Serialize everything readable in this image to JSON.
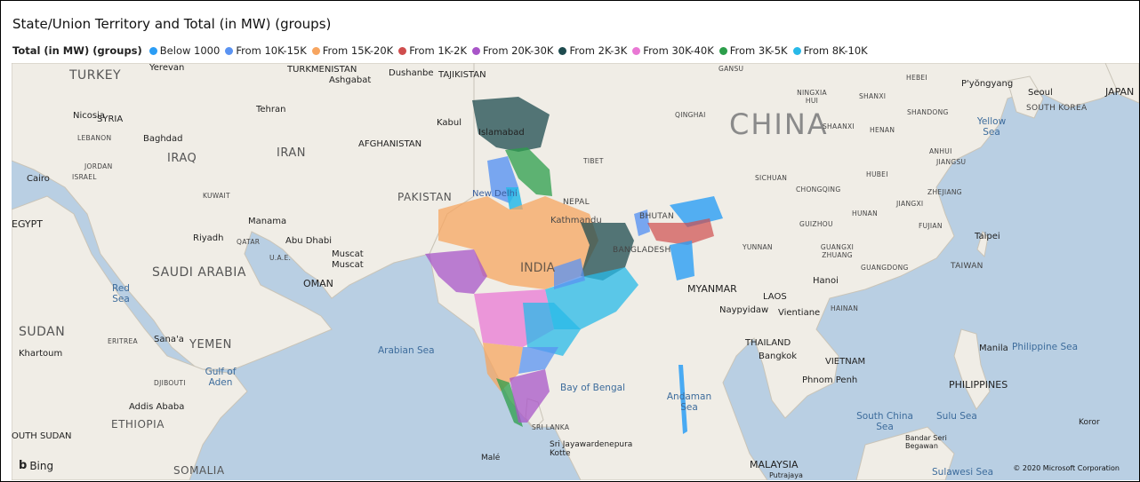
{
  "title": "State/Union Territory and Total (in MW) (groups)",
  "legend": {
    "title": "Total (in MW) (groups)",
    "items": [
      {
        "label": "Below 1000",
        "color": "#2b9df5"
      },
      {
        "label": "From 10K-15K",
        "color": "#5a93f2"
      },
      {
        "label": "From 15K-20K",
        "color": "#f7a560"
      },
      {
        "label": "From 1K-2K",
        "color": "#cf4d4d"
      },
      {
        "label": "From 20K-30K",
        "color": "#a855c8"
      },
      {
        "label": "From 2K-3K",
        "color": "#1e4b4f"
      },
      {
        "label": "From 30K-40K",
        "color": "#e978d4"
      },
      {
        "label": "From 3K-5K",
        "color": "#2c9e4b"
      },
      {
        "label": "From 8K-10K",
        "color": "#28b9e8"
      }
    ]
  },
  "map": {
    "attribution": "© 2020 Microsoft Corporation",
    "provider": "Bing",
    "countries": [
      "TURKEY",
      "SYRIA",
      "LEBANON",
      "JORDAN",
      "ISRAEL",
      "IRAQ",
      "IRAN",
      "KUWAIT",
      "QATAR",
      "U.A.E.",
      "OMAN",
      "SAUDI ARABIA",
      "YEMEN",
      "EGYPT",
      "SUDAN",
      "ERITREA",
      "DJIBOUTI",
      "ETHIOPIA",
      "SOMALIA",
      "OUTH SUDAN",
      "TURKMENISTAN",
      "AFGHANISTAN",
      "PAKISTAN",
      "TAJIKISTAN",
      "NEPAL",
      "BHUTAN",
      "BANGLADESH",
      "INDIA",
      "SRI LANKA",
      "MYANMAR",
      "LAOS",
      "THAILAND",
      "VIETNAM",
      "MALAYSIA",
      "PHILIPPINES",
      "TAIWAN",
      "CHINA",
      "TIBET",
      "JAPAN"
    ],
    "cities": [
      "Yerevan",
      "Ashgabat",
      "Dushanbe",
      "Tehran",
      "Nicosia",
      "Baghdad",
      "Cairo",
      "Kabul",
      "Islamabad",
      "New Delhi",
      "Kathmandu",
      "Manama",
      "Riyadh",
      "Abu Dhabi",
      "Muscat",
      "Sana'a",
      "Khartoum",
      "Addis Ababa",
      "Naypyidaw",
      "Vientiane",
      "Hanoi",
      "Bangkok",
      "Phnom Penh",
      "Manila",
      "Taipei",
      "Seoul",
      "P'yŏngyang",
      "Sri Jayawardenepura Kotte",
      "Malé",
      "Bandar Seri Begawan",
      "Koror",
      "Putrajaya"
    ],
    "water": [
      "Red Sea",
      "Arabian Sea",
      "Gulf of Aden",
      "Bay of Bengal",
      "Andaman Sea",
      "South China Sea",
      "Sulu Sea",
      "Philippine Sea",
      "Yellow Sea",
      "Sulawesi Sea"
    ],
    "chinese_provinces": [
      "GANSU",
      "NINGXIA HUI",
      "SHANXI",
      "HEBEI",
      "QINGHAI",
      "SHANDONG",
      "SHAANXI",
      "HENAN",
      "ANHUI",
      "JIANGSU",
      "SICHUAN",
      "HUBEI",
      "CHONGQING",
      "ZHEJIANG",
      "JIANGXI",
      "HUNAN",
      "GUIZHOU",
      "FUJIAN",
      "YUNNAN",
      "GUANGXI ZHUANG",
      "GUANGDONG",
      "HAINAN",
      "SOUTH KOREA"
    ]
  }
}
